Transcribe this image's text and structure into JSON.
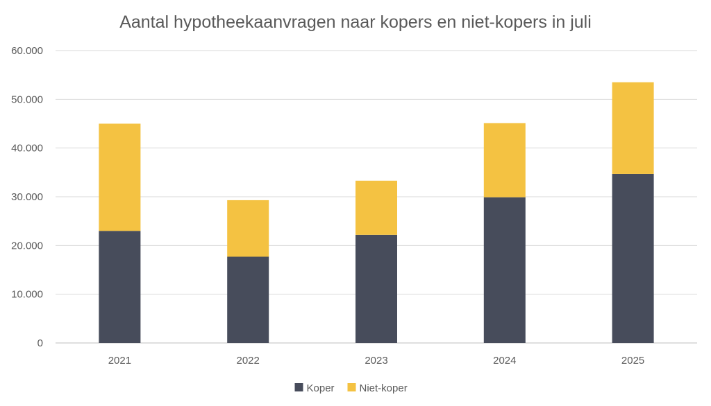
{
  "chart_data": {
    "type": "bar",
    "stacked": true,
    "title": "Aantal hypotheekaanvragen naar kopers en niet-kopers in juli",
    "xlabel": "",
    "ylabel": "",
    "categories": [
      "2021",
      "2022",
      "2023",
      "2024",
      "2025"
    ],
    "series": [
      {
        "name": "Koper",
        "color": "#474c5b",
        "values": [
          23000,
          17700,
          22200,
          29900,
          34700
        ]
      },
      {
        "name": "Niet-koper",
        "color": "#f4c242",
        "values": [
          22000,
          11600,
          11100,
          15200,
          18800
        ]
      }
    ],
    "ylim": [
      0,
      60000
    ],
    "yticks": [
      0,
      10000,
      20000,
      30000,
      40000,
      50000,
      60000
    ],
    "ytick_labels": [
      "0",
      "10.000",
      "20.000",
      "30.000",
      "40.000",
      "50.000",
      "60.000"
    ],
    "grid": true,
    "legend_position": "bottom"
  }
}
